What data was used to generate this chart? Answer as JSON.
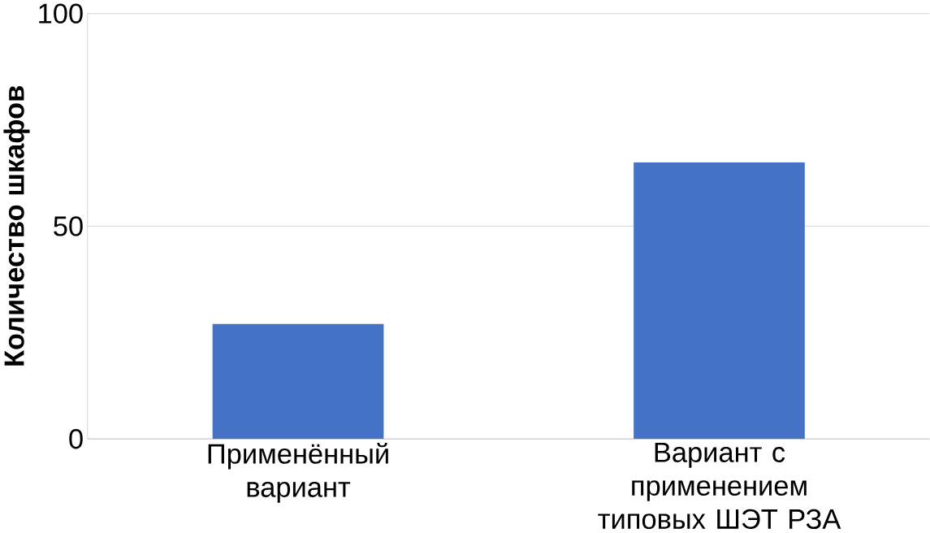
{
  "chart_data": {
    "type": "bar",
    "ylabel": "Количество шкафов",
    "categories": [
      "Применённый вариант",
      "Вариант с применением типовых ШЭТ РЗА"
    ],
    "values": [
      27,
      65
    ],
    "color": "#4472c4",
    "ylim": [
      0,
      100
    ],
    "yticks": [
      0,
      50,
      100
    ],
    "grid": "y"
  }
}
